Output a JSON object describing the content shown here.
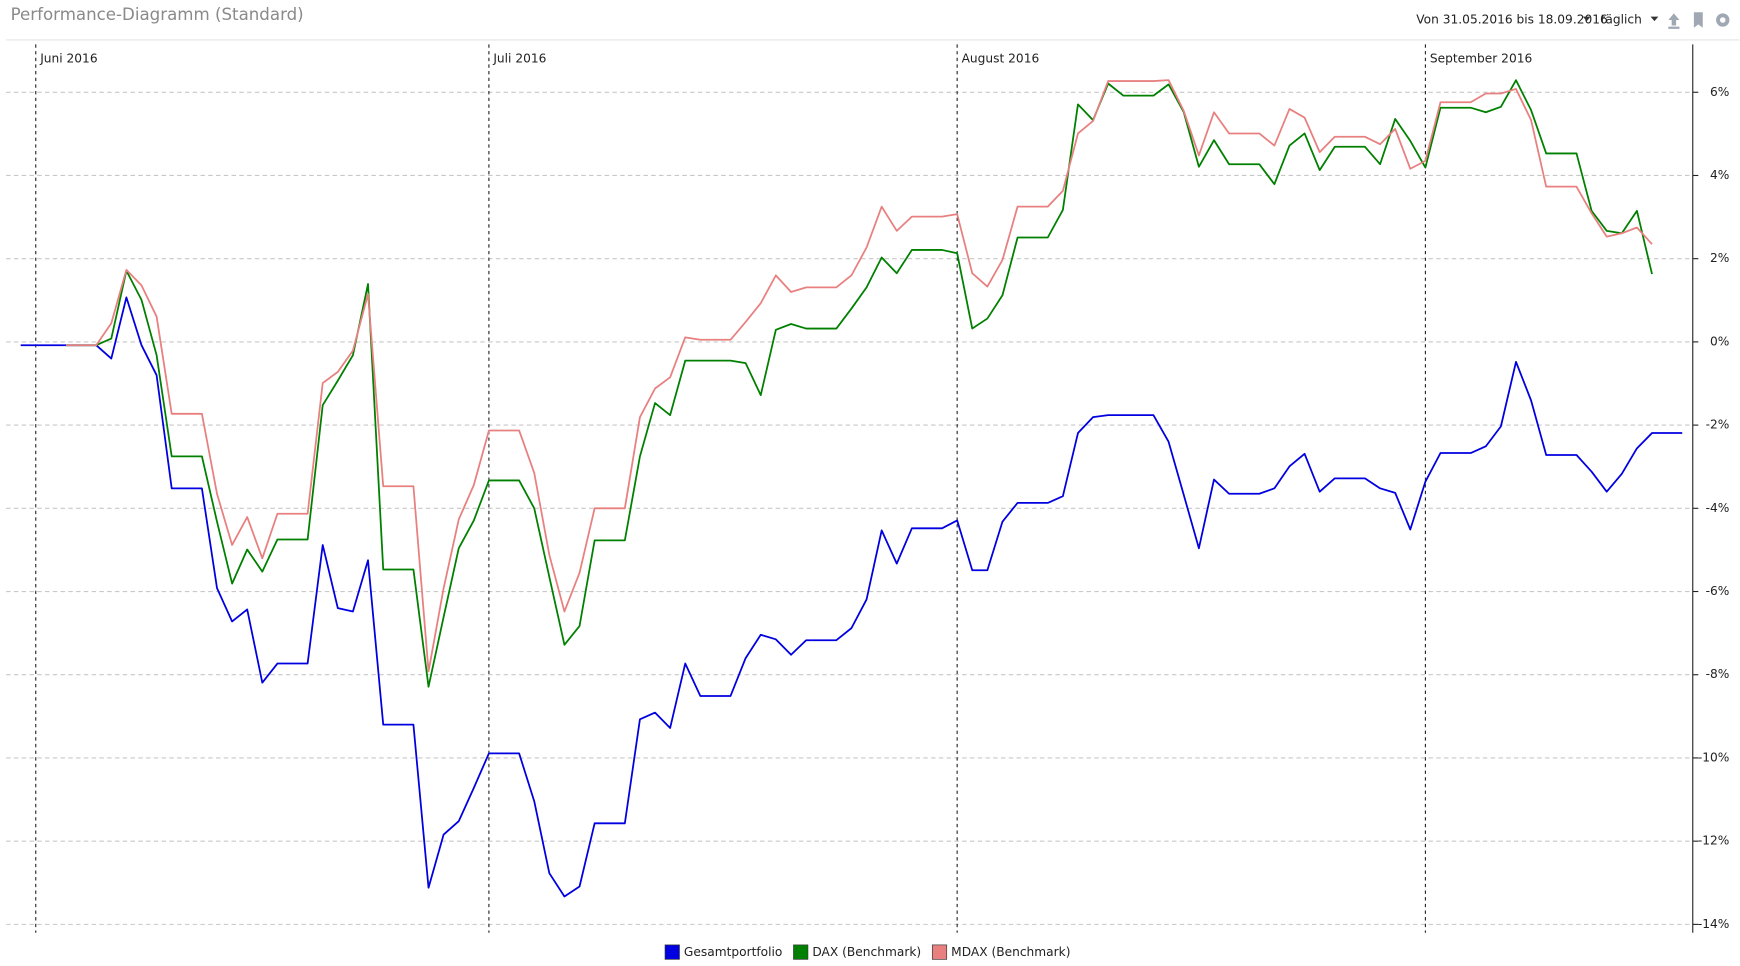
{
  "header": {
    "title": "Performance-Diagramm (Standard)",
    "range": "Von 31.05.2016 bis 18.09.2016",
    "interval": "täglich"
  },
  "chart_data": {
    "type": "line",
    "x": [
      0,
      1,
      2,
      3,
      4,
      5,
      6,
      7,
      8,
      9,
      10,
      11,
      12,
      13,
      14,
      15,
      16,
      17,
      18,
      19,
      20,
      21,
      22,
      23,
      24,
      25,
      26,
      27,
      28,
      29,
      30,
      31,
      32,
      33,
      34,
      35,
      36,
      37,
      38,
      39,
      40,
      41,
      42,
      43,
      44,
      45,
      46,
      47,
      48,
      49,
      50,
      51,
      52,
      53,
      54,
      55,
      56,
      57,
      58,
      59,
      60,
      61,
      62,
      63,
      64,
      65,
      66,
      67,
      68,
      69,
      70,
      71,
      72,
      73,
      74,
      75,
      76,
      77,
      78,
      79,
      80,
      81,
      82,
      83,
      84,
      85,
      86,
      87,
      88,
      89,
      90,
      91,
      92,
      93,
      94,
      95,
      96,
      97,
      98,
      99,
      100,
      101,
      102,
      103,
      104,
      105,
      106,
      107,
      108,
      109,
      110
    ],
    "xlim": [
      -0.96,
      110.7
    ],
    "xticks": [
      {
        "value": 1,
        "label": "Juni 2016"
      },
      {
        "value": 31,
        "label": "Juli 2016"
      },
      {
        "value": 62,
        "label": "August 2016"
      },
      {
        "value": 93,
        "label": "September 2016"
      }
    ],
    "ylim": [
      -14.2,
      7.15
    ],
    "yticks": [
      {
        "value": -14,
        "label": "-14%"
      },
      {
        "value": -12,
        "label": "-12%"
      },
      {
        "value": -10,
        "label": "-10%"
      },
      {
        "value": -8,
        "label": "-8%"
      },
      {
        "value": -6,
        "label": "-6%"
      },
      {
        "value": -4,
        "label": "-4%"
      },
      {
        "value": -2,
        "label": "-2%"
      },
      {
        "value": 0,
        "label": "0%"
      },
      {
        "value": 2,
        "label": "2%"
      },
      {
        "value": 4,
        "label": "4%"
      },
      {
        "value": 6,
        "label": "6%"
      }
    ],
    "grid": true,
    "series": [
      {
        "name": "Gesamtportfolio",
        "color": "#0000e0",
        "values": [
          -0.08,
          -0.08,
          -0.08,
          -0.08,
          -0.08,
          -0.08,
          -0.4,
          1.07,
          -0.08,
          -0.8,
          -3.52,
          -3.52,
          -3.52,
          -5.92,
          -6.72,
          -6.43,
          -8.19,
          -7.73,
          -7.73,
          -7.73,
          -4.88,
          -6.4,
          -6.48,
          -5.25,
          -9.2,
          -9.2,
          -9.2,
          -13.12,
          -11.84,
          -11.52,
          -10.72,
          -9.89,
          -9.89,
          -9.89,
          -11.04,
          -12.77,
          -13.33,
          -13.09,
          -11.57,
          -11.57,
          -11.57,
          -9.07,
          -8.91,
          -9.28,
          -7.73,
          -8.51,
          -8.51,
          -8.51,
          -7.6,
          -7.04,
          -7.15,
          -7.52,
          -7.17,
          -7.17,
          -7.17,
          -6.88,
          -6.19,
          -4.53,
          -5.33,
          -4.48,
          -4.48,
          -4.48,
          -4.29,
          -5.49,
          -5.49,
          -4.32,
          -3.87,
          -3.87,
          -3.87,
          -3.71,
          -2.19,
          -1.81,
          -1.76,
          -1.76,
          -1.76,
          -1.76,
          -2.4,
          -3.68,
          -4.96,
          -3.31,
          -3.65,
          -3.65,
          -3.65,
          -3.52,
          -2.99,
          -2.69,
          -3.6,
          -3.28,
          -3.28,
          -3.28,
          -3.52,
          -3.63,
          -4.51,
          -3.36,
          -2.67,
          -2.67,
          -2.67,
          -2.51,
          -2.03,
          -0.48,
          -1.41,
          -2.72,
          -2.72,
          -2.72,
          -3.12,
          -3.6,
          -3.17,
          -2.56,
          -2.19,
          -2.19,
          -2.19
        ]
      },
      {
        "name": "DAX (Benchmark)",
        "color": "#008000",
        "values": [
          null,
          null,
          null,
          -0.08,
          -0.08,
          -0.08,
          0.08,
          1.71,
          1.01,
          -0.32,
          -2.75,
          -2.75,
          -2.75,
          -4.32,
          -5.81,
          -4.99,
          -5.52,
          -4.75,
          -4.75,
          -4.75,
          -1.52,
          -0.93,
          -0.32,
          1.39,
          -5.47,
          -5.47,
          -5.47,
          -8.29,
          -6.61,
          -4.96,
          -4.29,
          -3.33,
          -3.33,
          -3.33,
          -4.0,
          -5.65,
          -7.28,
          -6.83,
          -4.77,
          -4.77,
          -4.77,
          -2.75,
          -1.47,
          -1.76,
          -0.45,
          -0.45,
          -0.45,
          -0.45,
          -0.51,
          -1.28,
          0.29,
          0.43,
          0.32,
          0.32,
          0.32,
          0.8,
          1.31,
          2.03,
          1.65,
          2.21,
          2.21,
          2.21,
          2.13,
          0.32,
          0.56,
          1.12,
          2.51,
          2.51,
          2.51,
          3.17,
          5.71,
          5.33,
          6.21,
          5.92,
          5.92,
          5.92,
          6.19,
          5.52,
          4.21,
          4.85,
          4.27,
          4.27,
          4.27,
          3.79,
          4.72,
          5.01,
          4.13,
          4.69,
          4.69,
          4.69,
          4.27,
          5.36,
          4.83,
          4.19,
          5.63,
          5.63,
          5.63,
          5.52,
          5.65,
          6.29,
          5.57,
          4.53,
          4.53,
          4.53,
          3.15,
          2.67,
          2.61,
          3.15,
          1.63,
          null,
          null
        ]
      },
      {
        "name": "MDAX (Benchmark)",
        "color": "#e88080",
        "values": [
          null,
          null,
          null,
          -0.08,
          -0.08,
          -0.08,
          0.45,
          1.73,
          1.36,
          0.61,
          -1.73,
          -1.73,
          -1.73,
          -3.65,
          -4.88,
          -4.21,
          -5.2,
          -4.13,
          -4.13,
          -4.13,
          -0.99,
          -0.72,
          -0.21,
          1.15,
          -3.47,
          -3.47,
          -3.47,
          -7.92,
          -5.92,
          -4.27,
          -3.44,
          -2.13,
          -2.13,
          -2.13,
          -3.15,
          -5.12,
          -6.48,
          -5.55,
          -4.0,
          -4.0,
          -4.0,
          -1.81,
          -1.12,
          -0.85,
          0.11,
          0.05,
          0.05,
          0.05,
          0.48,
          0.93,
          1.6,
          1.2,
          1.31,
          1.31,
          1.31,
          1.6,
          2.27,
          3.25,
          2.67,
          3.01,
          3.01,
          3.01,
          3.07,
          1.65,
          1.33,
          1.97,
          3.25,
          3.25,
          3.25,
          3.63,
          5.01,
          5.31,
          6.27,
          6.27,
          6.27,
          6.27,
          6.29,
          5.55,
          4.48,
          5.52,
          5.01,
          5.01,
          5.01,
          4.72,
          5.6,
          5.39,
          4.56,
          4.93,
          4.93,
          4.93,
          4.75,
          5.12,
          4.16,
          4.35,
          5.76,
          5.76,
          5.76,
          5.97,
          5.97,
          6.08,
          5.33,
          3.73,
          3.73,
          3.73,
          3.09,
          2.53,
          2.61,
          2.75,
          2.35,
          null,
          null
        ]
      }
    ]
  }
}
